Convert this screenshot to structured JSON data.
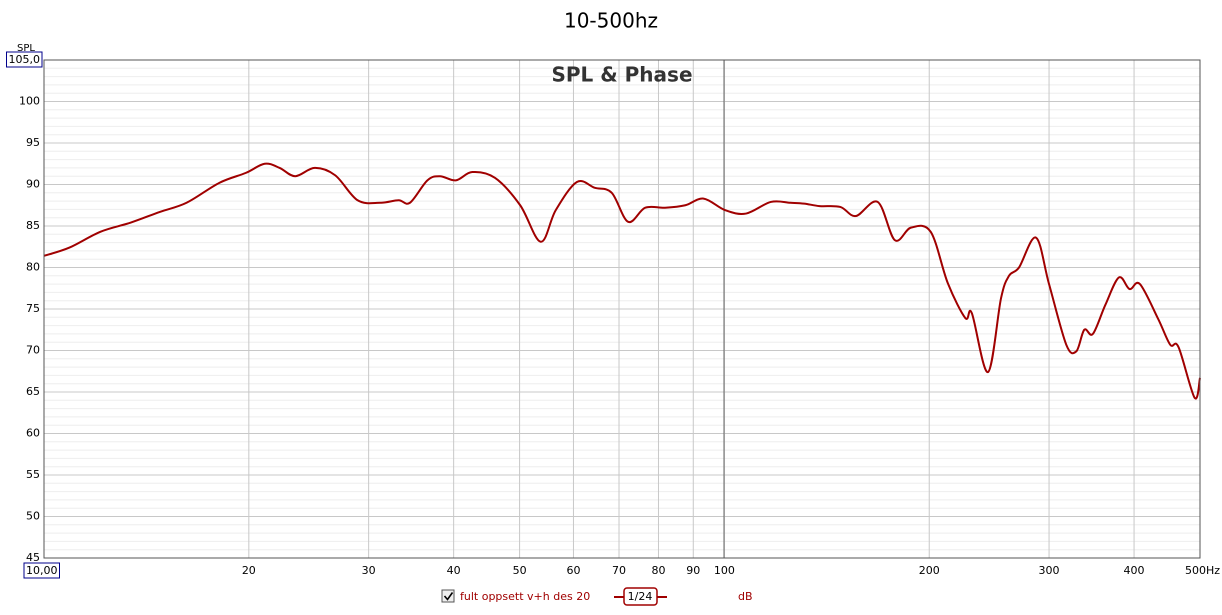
{
  "chart_data": {
    "type": "line",
    "title": "10-500hz",
    "plot_title": "SPL & Phase",
    "y_label": "SPL",
    "xscale": "log",
    "grid": true,
    "minor_grid": true,
    "xlim": [
      10,
      500
    ],
    "ylim": [
      45,
      105
    ],
    "xticks": [
      {
        "value": 10,
        "label": "10,00"
      },
      20,
      30,
      40,
      50,
      60,
      70,
      80,
      90,
      100,
      200,
      300,
      400,
      {
        "value": 500,
        "label": "500Hz"
      }
    ],
    "yticks": [
      45,
      50,
      55,
      60,
      65,
      70,
      75,
      80,
      85,
      90,
      95,
      100,
      {
        "value": 105,
        "label": "105,0"
      }
    ],
    "x": [
      10,
      10.9,
      12.1,
      13.4,
      14.8,
      16.2,
      18.1,
      19.8,
      21.1,
      22.2,
      23.4,
      25,
      26.8,
      28.9,
      31.2,
      33.2,
      34.5,
      36.6,
      38.2,
      40.3,
      42.6,
      46,
      50.1,
      53.7,
      56.5,
      60.7,
      64.5,
      68.3,
      72.2,
      76.5,
      81.8,
      87.6,
      93.2,
      100.3,
      107.6,
      117,
      125,
      131,
      138,
      148,
      156,
      168,
      178,
      188,
      201,
      213,
      226,
      231,
      244,
      255,
      262,
      271,
      287,
      300,
      318,
      329,
      338,
      348,
      363,
      380,
      394,
      408,
      434,
      452,
      465,
      491,
      500
    ],
    "series": [
      {
        "name": "fult oppsett v+h des 20",
        "color": "#a00000",
        "smoothing": "1/24",
        "unit": "dB",
        "values": [
          81.4,
          82.4,
          84.3,
          85.4,
          86.7,
          87.8,
          90.2,
          91.4,
          92.5,
          92.0,
          91.0,
          92.0,
          91.1,
          88.1,
          87.8,
          88.1,
          87.8,
          90.5,
          91.0,
          90.5,
          91.5,
          90.8,
          87.5,
          83.1,
          86.9,
          90.3,
          89.6,
          89.0,
          85.5,
          87.2,
          87.2,
          87.5,
          88.3,
          86.9,
          86.5,
          87.9,
          87.8,
          87.7,
          87.4,
          87.3,
          86.2,
          87.9,
          83.3,
          84.8,
          84.3,
          78.1,
          73.9,
          74.5,
          67.4,
          76.3,
          79.0,
          80.0,
          83.6,
          78.0,
          70.7,
          69.9,
          72.5,
          72.0,
          75.5,
          78.8,
          77.4,
          78.0,
          73.8,
          70.7,
          70.4,
          64.3,
          66.7
        ]
      }
    ]
  }
}
